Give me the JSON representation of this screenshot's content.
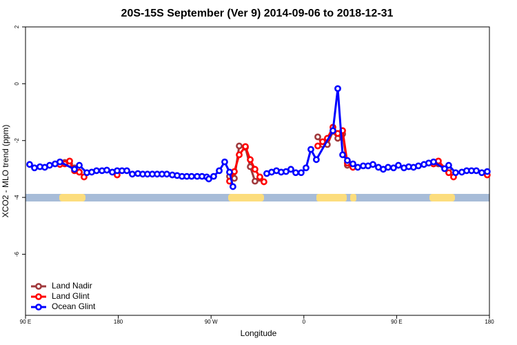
{
  "chart_data": {
    "type": "line",
    "title": "20S-15S September (Ver 9)   2014-09-06 to 2018-12-31",
    "x_label": "Longitude",
    "y_label": "XCO2 - MLO trend (ppm)",
    "xlim": [
      90,
      540
    ],
    "ylim": [
      -8.15,
      2
    ],
    "xticks": [
      {
        "value": 90,
        "label": "90 E"
      },
      {
        "value": 180,
        "label": "180"
      },
      {
        "value": 270,
        "label": "90 W"
      },
      {
        "value": 360,
        "label": "0"
      },
      {
        "value": 450,
        "label": "90 E"
      },
      {
        "value": 540,
        "label": "180"
      }
    ],
    "yticks": [
      2,
      0,
      -2,
      -4,
      -6
    ],
    "legend": "bottom-left",
    "series": [
      {
        "name": "Land Nadir",
        "color": "#a0393c",
        "x": [
          128.1,
          132.8,
          137.5,
          142.2,
          null,
          287.9,
          292.6,
          297.3,
          303.3,
          308,
          312.6,
          317.3,
          null,
          373.5,
          378.2,
          382.8,
          388.2,
          392.9,
          397.6,
          402.2,
          null,
          485.8,
          490.5,
          500.5
        ],
        "values": [
          -2.77,
          -2.82,
          -2.96,
          -3.11,
          null,
          -3.26,
          -3.33,
          -2.19,
          -2.24,
          -2.92,
          -3.43,
          -3.33,
          null,
          -1.87,
          -2.14,
          -2.14,
          -1.68,
          -1.92,
          -1.77,
          -2.87,
          null,
          -2.82,
          -2.82,
          -2.99
        ]
      },
      {
        "name": "Land Glint",
        "color": "#ff0000",
        "x": [
          123.4,
          128.1,
          132.8,
          137.5,
          142.2,
          146.8,
          null,
          178.9,
          null,
          287.9,
          292.6,
          297.3,
          303.3,
          308,
          312.6,
          317.3,
          321.3,
          null,
          373.5,
          378.2,
          382.8,
          388.2,
          392.9,
          397.6,
          402.2,
          407.6,
          null,
          485.8,
          490.5,
          500.5,
          505.2,
          null,
          537.9
        ],
        "values": [
          -2.84,
          -2.82,
          -2.72,
          -3.06,
          -3.11,
          -3.28,
          null,
          -3.21,
          null,
          -3.43,
          -3.09,
          -2.5,
          -2.21,
          -2.67,
          -3.01,
          -3.28,
          -3.45,
          null,
          -2.19,
          -2.04,
          -1.92,
          -1.53,
          -1.75,
          -1.65,
          -2.79,
          -2.94,
          null,
          -2.82,
          -2.72,
          -3.13,
          -3.28,
          null,
          -3.21
        ]
      },
      {
        "name": "Ocean Glint",
        "color": "#0000ff",
        "x": [
          94,
          98.7,
          104,
          108.7,
          113.4,
          118.7,
          123.4,
          137.5,
          142.2,
          149.5,
          154.2,
          158.9,
          164.2,
          168.9,
          174.2,
          178.9,
          183.6,
          188.3,
          193.6,
          199,
          203.7,
          208.3,
          213,
          217.7,
          222.4,
          227.1,
          232.4,
          237.1,
          241.8,
          246.5,
          251.1,
          256.5,
          261.2,
          265.8,
          267.8,
          272.5,
          277.9,
          283.2,
          287.9,
          291.2,
          null,
          324,
          328.7,
          333.4,
          338,
          342.7,
          347.4,
          352.1,
          357.4,
          362.1,
          366.8,
          372.1,
          388.2,
          392.9,
          397.6,
          402.2,
          407.6,
          412.3,
          417.6,
          422.3,
          427,
          432.3,
          437,
          441.7,
          447,
          451.7,
          457.1,
          461.7,
          466.4,
          471.1,
          476.5,
          481.1,
          485.8,
          496.5,
          500.5,
          507.2,
          513.2,
          517.9,
          522.6,
          527.3,
          532.6,
          537.9
        ],
        "values": [
          -2.84,
          -2.96,
          -2.92,
          -2.94,
          -2.87,
          -2.82,
          -2.75,
          -3.01,
          -2.87,
          -3.13,
          -3.11,
          -3.06,
          -3.06,
          -3.04,
          -3.11,
          -3.06,
          -3.06,
          -3.06,
          -3.18,
          -3.16,
          -3.18,
          -3.18,
          -3.18,
          -3.18,
          -3.18,
          -3.18,
          -3.21,
          -3.23,
          -3.26,
          -3.26,
          -3.26,
          -3.26,
          -3.26,
          -3.28,
          -3.35,
          -3.26,
          -3.06,
          -2.75,
          -3.11,
          -3.62,
          null,
          -3.16,
          -3.11,
          -3.06,
          -3.11,
          -3.09,
          -3.01,
          -3.13,
          -3.13,
          -2.96,
          -2.31,
          -2.67,
          -1.65,
          -0.17,
          -2.5,
          -2.7,
          -2.82,
          -2.94,
          -2.89,
          -2.89,
          -2.84,
          -2.94,
          -3.01,
          -2.94,
          -2.96,
          -2.87,
          -2.96,
          -2.92,
          -2.94,
          -2.89,
          -2.84,
          -2.79,
          -2.75,
          -2.99,
          -2.87,
          -3.13,
          -3.11,
          -3.06,
          -3.06,
          -3.06,
          -3.13,
          -3.09
        ]
      }
    ]
  }
}
